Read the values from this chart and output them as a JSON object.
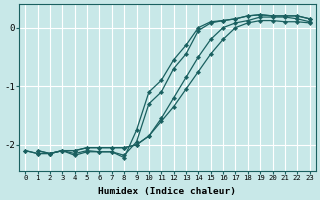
{
  "xlabel": "Humidex (Indice chaleur)",
  "ylabel": "",
  "background_color": "#c8e8e8",
  "grid_color": "#ffffff",
  "line_color": "#1a6060",
  "xlim": [
    -0.5,
    23.5
  ],
  "ylim": [
    -2.45,
    0.4
  ],
  "yticks": [
    0,
    -1,
    -2
  ],
  "xticks": [
    0,
    1,
    2,
    3,
    4,
    5,
    6,
    7,
    8,
    9,
    10,
    11,
    12,
    13,
    14,
    15,
    16,
    17,
    18,
    19,
    20,
    21,
    22,
    23
  ],
  "series": [
    [
      -2.1,
      -2.15,
      -2.15,
      -2.1,
      -2.1,
      -2.05,
      -2.05,
      -2.05,
      -2.05,
      -2.0,
      -1.85,
      -1.6,
      -1.35,
      -1.05,
      -0.75,
      -0.45,
      -0.2,
      0.0,
      0.08,
      0.12,
      0.12,
      0.1,
      0.1,
      0.08
    ],
    [
      -2.1,
      -2.15,
      -2.15,
      -2.1,
      -2.1,
      -2.05,
      -2.05,
      -2.05,
      -2.05,
      -2.0,
      -1.85,
      -1.55,
      -1.2,
      -0.85,
      -0.5,
      -0.2,
      0.0,
      0.08,
      0.12,
      0.18,
      0.18,
      0.18,
      0.15,
      0.1
    ],
    [
      null,
      -2.1,
      -2.15,
      -2.1,
      -2.15,
      -2.1,
      -2.12,
      -2.12,
      -2.18,
      -1.95,
      -1.3,
      -1.1,
      -0.7,
      -0.45,
      -0.05,
      0.08,
      0.12,
      0.15,
      0.2,
      0.22,
      0.2,
      0.2,
      0.2,
      0.15
    ],
    [
      null,
      -2.1,
      -2.15,
      -2.1,
      -2.18,
      -2.12,
      -2.12,
      -2.12,
      -2.22,
      -1.75,
      -1.1,
      -0.9,
      -0.55,
      -0.3,
      0.0,
      0.1,
      0.12,
      0.15,
      0.2,
      0.22,
      0.2,
      0.2,
      0.2,
      0.15
    ]
  ]
}
